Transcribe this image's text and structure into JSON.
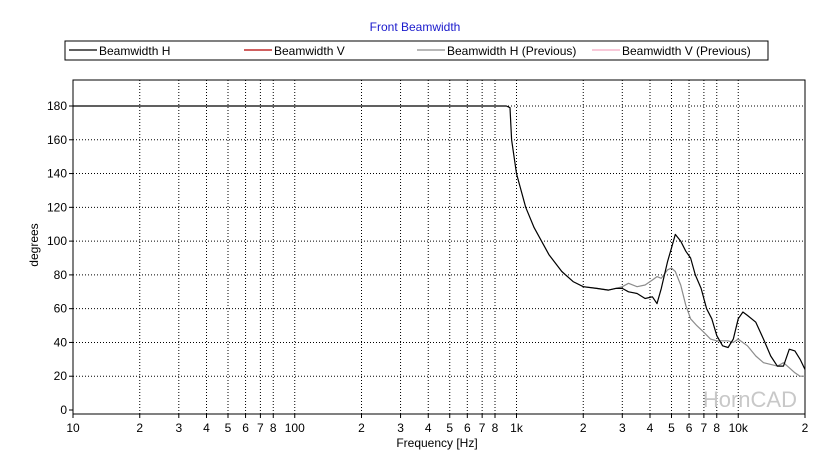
{
  "chart_data": {
    "type": "line",
    "title": "Front Beamwidth",
    "xlabel": "Frequency [Hz]",
    "ylabel": "degrees",
    "x_scale": "log",
    "xlim": [
      10,
      20000
    ],
    "ylim": [
      0,
      190
    ],
    "grid": true,
    "legend_position": "top",
    "watermark": "HornCAD",
    "x_tick_labels": [
      {
        "value": 10,
        "label": "10"
      },
      {
        "value": 20,
        "label": "2"
      },
      {
        "value": 30,
        "label": "3"
      },
      {
        "value": 40,
        "label": "4"
      },
      {
        "value": 50,
        "label": "5"
      },
      {
        "value": 60,
        "label": "6"
      },
      {
        "value": 70,
        "label": "7"
      },
      {
        "value": 80,
        "label": "8"
      },
      {
        "value": 100,
        "label": "100"
      },
      {
        "value": 200,
        "label": "2"
      },
      {
        "value": 300,
        "label": "3"
      },
      {
        "value": 400,
        "label": "4"
      },
      {
        "value": 500,
        "label": "5"
      },
      {
        "value": 600,
        "label": "6"
      },
      {
        "value": 700,
        "label": "7"
      },
      {
        "value": 800,
        "label": "8"
      },
      {
        "value": 1000,
        "label": "1k"
      },
      {
        "value": 2000,
        "label": "2"
      },
      {
        "value": 3000,
        "label": "3"
      },
      {
        "value": 4000,
        "label": "4"
      },
      {
        "value": 5000,
        "label": "5"
      },
      {
        "value": 6000,
        "label": "6"
      },
      {
        "value": 7000,
        "label": "7"
      },
      {
        "value": 8000,
        "label": "8"
      },
      {
        "value": 10000,
        "label": "10k"
      },
      {
        "value": 20000,
        "label": "2"
      }
    ],
    "y_ticks": [
      0,
      20,
      40,
      60,
      80,
      100,
      120,
      140,
      160,
      180
    ],
    "series": [
      {
        "name": "Beamwidth H",
        "color": "#000000",
        "points": [
          [
            10,
            180
          ],
          [
            900,
            180
          ],
          [
            935,
            179
          ],
          [
            950,
            160
          ],
          [
            1000,
            140
          ],
          [
            1100,
            120
          ],
          [
            1200,
            108
          ],
          [
            1400,
            92
          ],
          [
            1600,
            82
          ],
          [
            1800,
            76
          ],
          [
            2000,
            73
          ],
          [
            2300,
            72
          ],
          [
            2600,
            71
          ],
          [
            2800,
            72
          ],
          [
            3000,
            72
          ],
          [
            3200,
            70
          ],
          [
            3500,
            69
          ],
          [
            3800,
            66
          ],
          [
            4100,
            67
          ],
          [
            4300,
            63
          ],
          [
            4500,
            72
          ],
          [
            4800,
            88
          ],
          [
            5000,
            96
          ],
          [
            5200,
            104
          ],
          [
            5500,
            100
          ],
          [
            5800,
            94
          ],
          [
            6100,
            90
          ],
          [
            6400,
            80
          ],
          [
            6800,
            72
          ],
          [
            7200,
            60
          ],
          [
            7600,
            54
          ],
          [
            8000,
            44
          ],
          [
            8500,
            38
          ],
          [
            9000,
            37
          ],
          [
            9500,
            42
          ],
          [
            10000,
            54
          ],
          [
            10500,
            58
          ],
          [
            11000,
            56
          ],
          [
            12000,
            52
          ],
          [
            13000,
            42
          ],
          [
            14000,
            32
          ],
          [
            15000,
            26
          ],
          [
            16000,
            26
          ],
          [
            17000,
            36
          ],
          [
            18000,
            35
          ],
          [
            19000,
            30
          ],
          [
            20000,
            24
          ]
        ]
      },
      {
        "name": "Beamwidth V",
        "color": "#b40000",
        "points": []
      },
      {
        "name": "Beamwidth H (Previous)",
        "color": "#8c8c8c",
        "points": [
          [
            2000,
            73
          ],
          [
            2300,
            72
          ],
          [
            2600,
            71
          ],
          [
            2800,
            72
          ],
          [
            3000,
            73
          ],
          [
            3200,
            75
          ],
          [
            3500,
            73
          ],
          [
            3800,
            74
          ],
          [
            4100,
            77
          ],
          [
            4300,
            79
          ],
          [
            4500,
            78
          ],
          [
            4800,
            83
          ],
          [
            5000,
            84
          ],
          [
            5200,
            82
          ],
          [
            5500,
            74
          ],
          [
            5800,
            62
          ],
          [
            6100,
            54
          ],
          [
            6500,
            50
          ],
          [
            7000,
            46
          ],
          [
            7500,
            42
          ],
          [
            8000,
            41
          ],
          [
            8500,
            41
          ],
          [
            9000,
            41
          ],
          [
            9500,
            40
          ],
          [
            10000,
            42
          ],
          [
            11000,
            38
          ],
          [
            12000,
            32
          ],
          [
            13000,
            28
          ],
          [
            14000,
            27
          ],
          [
            15000,
            26
          ],
          [
            16000,
            28
          ],
          [
            17000,
            25
          ],
          [
            18000,
            22
          ],
          [
            19000,
            20
          ],
          [
            20000,
            20
          ]
        ]
      },
      {
        "name": "Beamwidth V (Previous)",
        "color": "#f4a8c0",
        "points": []
      }
    ]
  }
}
